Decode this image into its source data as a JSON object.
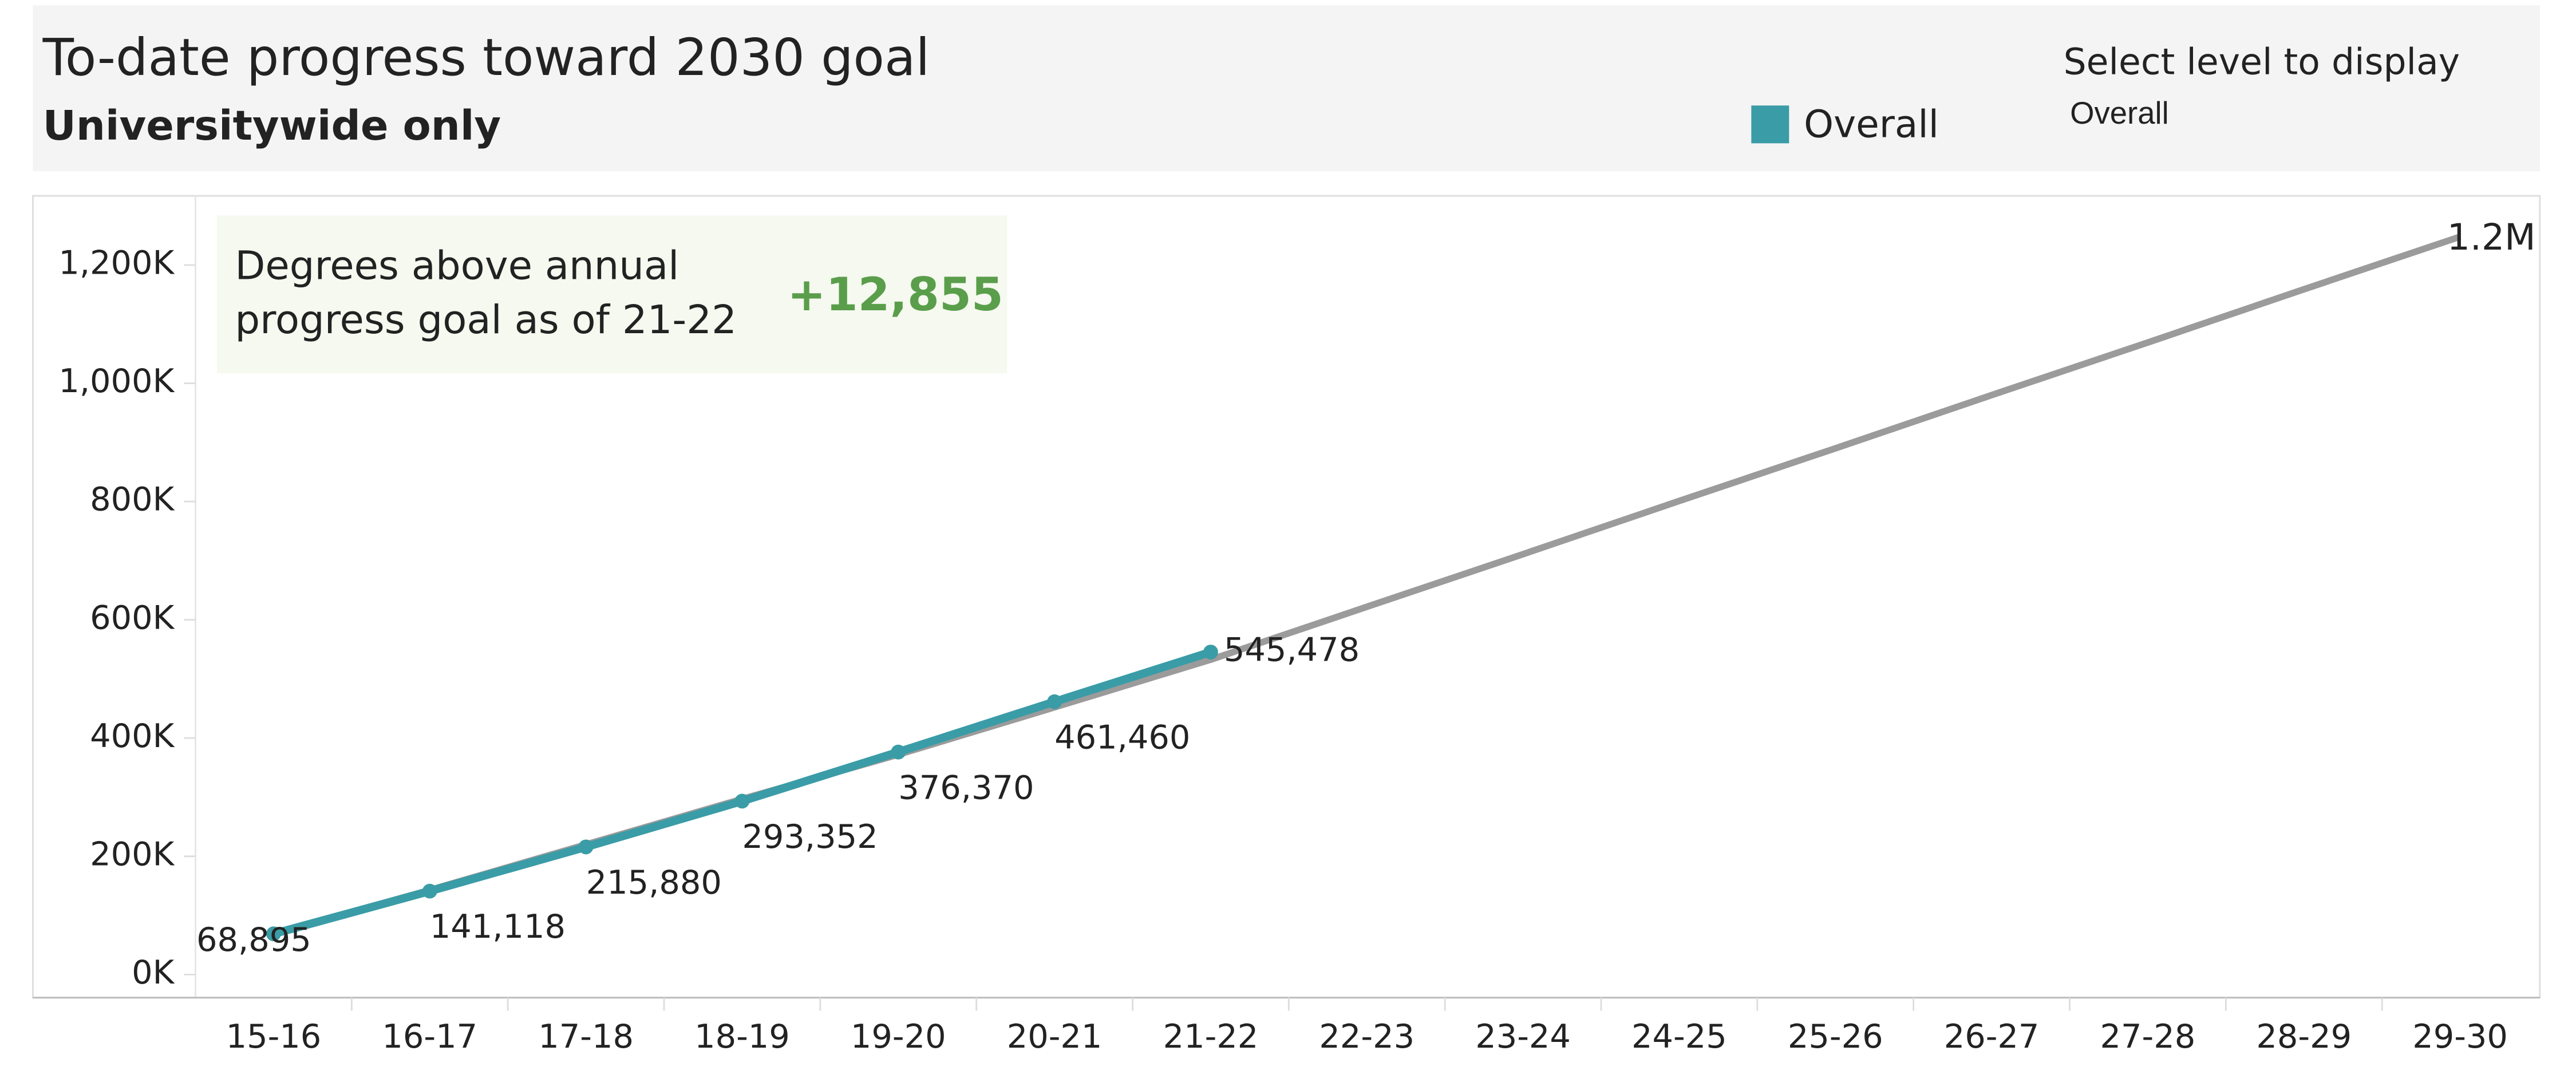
{
  "chart_data": {
    "type": "line",
    "title": "To-date progress toward 2030 goal",
    "subtitle": "Universitywide only",
    "legend_title": "Select level to display",
    "legend_selection": "Overall",
    "annotation": {
      "text_lines": [
        "Degrees above annual",
        "progress goal as of 21-22"
      ],
      "value": 12855,
      "value_label": "+12,855"
    },
    "categories": [
      "15-16",
      "16-17",
      "17-18",
      "18-19",
      "19-20",
      "20-21",
      "21-22",
      "22-23",
      "23-24",
      "24-25",
      "25-26",
      "26-27",
      "27-28",
      "28-29",
      "29-30"
    ],
    "series": [
      {
        "name": "Overall",
        "color": "#3a9ca6",
        "values": [
          68895,
          141118,
          215880,
          293352,
          376370,
          461460,
          545478,
          null,
          null,
          null,
          null,
          null,
          null,
          null,
          null
        ],
        "value_labels": [
          "68,895",
          "141,118",
          "215,880",
          "293,352",
          "376,370",
          "461,460",
          "545,478",
          null,
          null,
          null,
          null,
          null,
          null,
          null,
          null
        ]
      },
      {
        "color": "#9b9b9b",
        "values": [
          68895,
          143000,
          220000,
          297000,
          372000,
          452000,
          532623,
          622000,
          711000,
          801000,
          890000,
          980000,
          1069000,
          1159000,
          1248000
        ],
        "value_labels": [
          null,
          null,
          null,
          null,
          null,
          null,
          null,
          null,
          null,
          null,
          null,
          null,
          null,
          null,
          "1.2M"
        ]
      }
    ],
    "ylim": [
      -39000,
      1317000
    ],
    "yticks": [
      {
        "value": 0,
        "label": "0K"
      },
      {
        "value": 200000,
        "label": "200K"
      },
      {
        "value": 400000,
        "label": "400K"
      },
      {
        "value": 600000,
        "label": "600K"
      },
      {
        "value": 800000,
        "label": "800K"
      },
      {
        "value": 1000000,
        "label": "1,000K"
      },
      {
        "value": 1200000,
        "label": "1,200K"
      }
    ]
  }
}
